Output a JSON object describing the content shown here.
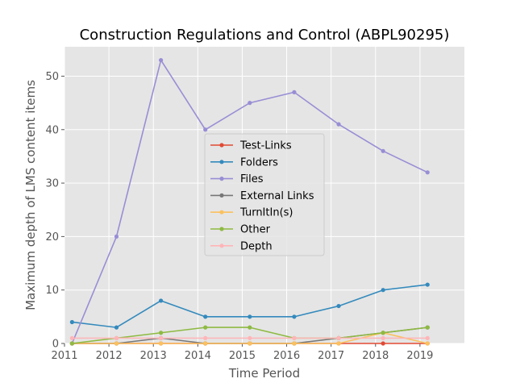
{
  "chart_data": {
    "type": "line",
    "title": "Construction Regulations and Control (ABPL90295)",
    "xlabel": "Time Period",
    "ylabel": "Maximum depth of LMS content items",
    "xlim": [
      2011.0,
      2020.0
    ],
    "ylim": [
      0,
      55.5
    ],
    "xticks": [
      2011,
      2012,
      2013,
      2014,
      2015,
      2016,
      2017,
      2018,
      2019
    ],
    "yticks": [
      0,
      10,
      20,
      30,
      40,
      50
    ],
    "grid": true,
    "legend_position": "center",
    "x": [
      2011.17,
      2012.17,
      2013.17,
      2014.17,
      2015.17,
      2016.17,
      2017.17,
      2018.17,
      2019.17
    ],
    "series": [
      {
        "name": "Test-Links",
        "color": "#e24a33",
        "values": [
          0,
          0,
          0,
          0,
          0,
          0,
          0,
          0,
          0
        ]
      },
      {
        "name": "Folders",
        "color": "#348abd",
        "values": [
          4,
          3,
          8,
          5,
          5,
          5,
          7,
          10,
          11
        ]
      },
      {
        "name": "Files",
        "color": "#988ed5",
        "values": [
          0,
          20,
          53,
          40,
          45,
          47,
          41,
          36,
          32
        ]
      },
      {
        "name": "External Links",
        "color": "#777777",
        "values": [
          0,
          0,
          1,
          0,
          0,
          0,
          1,
          2,
          3
        ]
      },
      {
        "name": "TurnItIn(s)",
        "color": "#fbc15e",
        "values": [
          0,
          0,
          0,
          0,
          0,
          0,
          0,
          2,
          0
        ]
      },
      {
        "name": "Other",
        "color": "#8eba42",
        "values": [
          0,
          1,
          2,
          3,
          3,
          1,
          1,
          2,
          3
        ]
      },
      {
        "name": "Depth",
        "color": "#ffb5b8",
        "values": [
          1,
          1,
          1,
          1,
          1,
          1,
          1,
          1,
          1
        ]
      }
    ]
  }
}
